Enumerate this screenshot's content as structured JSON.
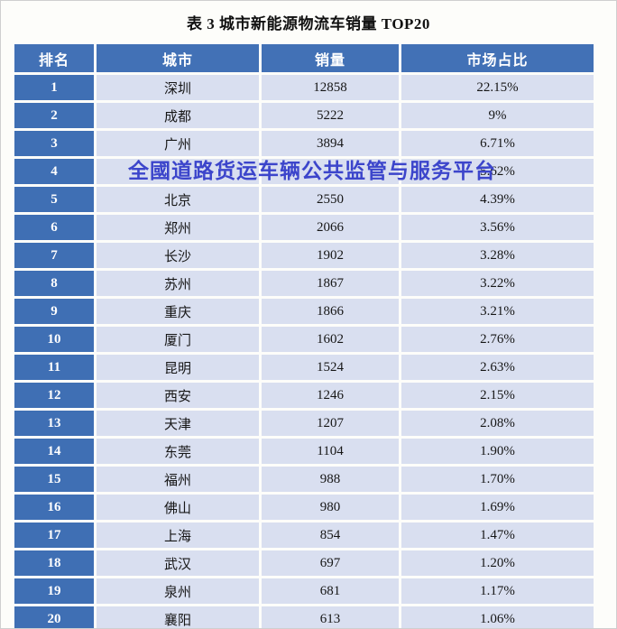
{
  "page": {
    "title": "表 3 城市新能源物流车销量 TOP20"
  },
  "watermark": {
    "text": "全國道路货运车辆公共监管与服务平台"
  },
  "colors": {
    "header_bg": "#4271b6",
    "rank_column_bg": "#3f6fb4",
    "cell_bg": "#d9dff0",
    "header_text": "#ffffff",
    "body_text": "#161616",
    "watermark_text": "#3c45cb"
  },
  "chart_data": {
    "type": "table",
    "title": "表 3 城市新能源物流车销量 TOP20",
    "columns": [
      "排名",
      "城市",
      "销量",
      "市场占比"
    ],
    "rows": [
      [
        "1",
        "深圳",
        "12858",
        "22.15%"
      ],
      [
        "2",
        "成都",
        "5222",
        "9%"
      ],
      [
        "3",
        "广州",
        "3894",
        "6.71%"
      ],
      [
        "4",
        "",
        "",
        "5.62%"
      ],
      [
        "5",
        "北京",
        "2550",
        "4.39%"
      ],
      [
        "6",
        "郑州",
        "2066",
        "3.56%"
      ],
      [
        "7",
        "长沙",
        "1902",
        "3.28%"
      ],
      [
        "8",
        "苏州",
        "1867",
        "3.22%"
      ],
      [
        "9",
        "重庆",
        "1866",
        "3.21%"
      ],
      [
        "10",
        "厦门",
        "1602",
        "2.76%"
      ],
      [
        "11",
        "昆明",
        "1524",
        "2.63%"
      ],
      [
        "12",
        "西安",
        "1246",
        "2.15%"
      ],
      [
        "13",
        "天津",
        "1207",
        "2.08%"
      ],
      [
        "14",
        "东莞",
        "1104",
        "1.90%"
      ],
      [
        "15",
        "福州",
        "988",
        "1.70%"
      ],
      [
        "16",
        "佛山",
        "980",
        "1.69%"
      ],
      [
        "17",
        "上海",
        "854",
        "1.47%"
      ],
      [
        "18",
        "武汉",
        "697",
        "1.20%"
      ],
      [
        "19",
        "泉州",
        "681",
        "1.17%"
      ],
      [
        "20",
        "襄阳",
        "613",
        "1.06%"
      ]
    ]
  }
}
